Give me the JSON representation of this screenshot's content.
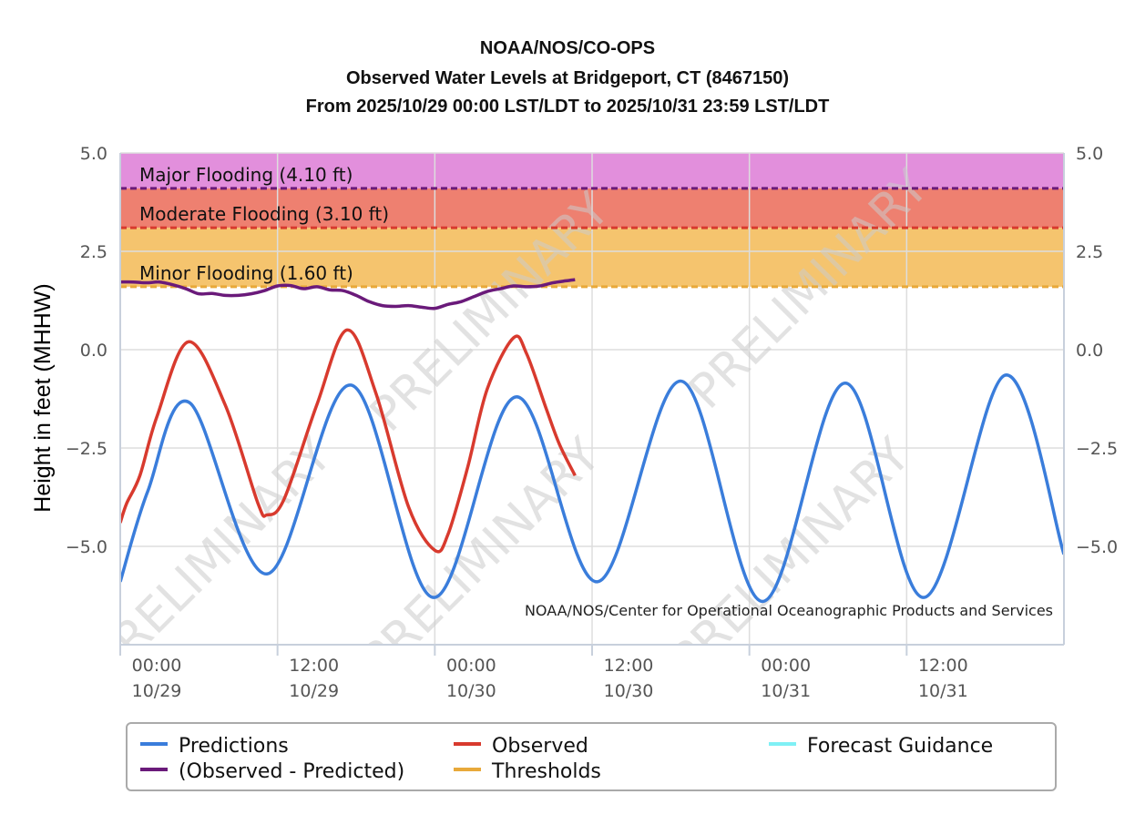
{
  "header": {
    "line1": "NOAA/NOS/CO-OPS",
    "line2": "Observed Water Levels at Bridgeport, CT (8467150)",
    "line3": "From 2025/10/29 00:00 LST/LDT to 2025/10/31 23:59 LST/LDT"
  },
  "credit": "NOAA/NOS/Center for Operational Oceanographic Products and Services",
  "watermark": "PRELIMINARY",
  "colors": {
    "predictions": "#3a7ddb",
    "observed": "#d83a2e",
    "residual": "#6a1a7a",
    "forecast": "#7ff0f5",
    "thresholds": "#e8a93a",
    "major_band": "#e28fdc",
    "moderate_band": "#ee8070",
    "minor_band": "#f5c46e"
  },
  "legend": [
    {
      "label": "Predictions",
      "color": "#3a7ddb"
    },
    {
      "label": "Observed",
      "color": "#d83a2e"
    },
    {
      "label": "Forecast Guidance",
      "color": "#7ff0f5"
    },
    {
      "label": "(Observed - Predicted)",
      "color": "#6a1a7a"
    },
    {
      "label": "Thresholds",
      "color": "#e8a93a"
    }
  ],
  "chart_data": {
    "type": "line",
    "title": "Observed Water Levels at Bridgeport, CT (8467150)",
    "ylabel": "Height in feet (MHHW)",
    "xlabel": "",
    "ylim": [
      -7.5,
      5.0
    ],
    "xlim_hours": [
      0,
      72
    ],
    "yticks": [
      "5.0",
      "2.5",
      "0.0",
      "−2.5",
      "−5.0"
    ],
    "ytick_values": [
      5.0,
      2.5,
      0.0,
      -2.5,
      -5.0
    ],
    "xticks": [
      {
        "hour": 0,
        "time": "00:00",
        "date": "10/29"
      },
      {
        "hour": 12,
        "time": "12:00",
        "date": "10/29"
      },
      {
        "hour": 24,
        "time": "00:00",
        "date": "10/30"
      },
      {
        "hour": 36,
        "time": "12:00",
        "date": "10/30"
      },
      {
        "hour": 48,
        "time": "00:00",
        "date": "10/31"
      },
      {
        "hour": 60,
        "time": "12:00",
        "date": "10/31"
      }
    ],
    "thresholds": [
      {
        "label": "Major Flooding (4.10 ft)",
        "value": 4.1,
        "band_top": 5.0
      },
      {
        "label": "Moderate Flooding (3.10 ft)",
        "value": 3.1,
        "band_top": 4.1
      },
      {
        "label": "Minor Flooding (1.60 ft)",
        "value": 1.6,
        "band_top": 3.1
      }
    ],
    "series": [
      {
        "name": "Predictions",
        "x": [
          0,
          2.1,
          5.3,
          11.2,
          17.6,
          23.9,
          30.2,
          36.4,
          42.8,
          49.0,
          55.3,
          61.3,
          67.5,
          72.0
        ],
        "values": [
          -5.9,
          -3.6,
          -1.35,
          -5.7,
          -0.9,
          -6.3,
          -1.2,
          -5.9,
          -0.8,
          -6.4,
          -0.85,
          -6.3,
          -0.65,
          -5.2
        ]
      },
      {
        "name": "Observed",
        "x": [
          0,
          0.5,
          1.5,
          2.8,
          5.2,
          8.0,
          10.5,
          11.2,
          12.5,
          15.0,
          17.3,
          19.5,
          22.0,
          24.0,
          25.0,
          26.5,
          28.0,
          30.0,
          31.0,
          32.5,
          33.5,
          34.7
        ],
        "values": [
          -4.4,
          -3.9,
          -3.2,
          -1.7,
          0.2,
          -1.4,
          -3.9,
          -4.2,
          -3.8,
          -1.4,
          0.5,
          -1.1,
          -4.0,
          -5.1,
          -4.7,
          -3.0,
          -1.0,
          0.3,
          -0.1,
          -1.5,
          -2.4,
          -3.2
        ]
      },
      {
        "name": "(Observed - Predicted)",
        "x": [
          0,
          1,
          2,
          3,
          4,
          5,
          6,
          7,
          8,
          9,
          10,
          11,
          12,
          13,
          14,
          15,
          16,
          17,
          18,
          19,
          20,
          21,
          22,
          23,
          24,
          25,
          26,
          27,
          28,
          29,
          30,
          31,
          32,
          33,
          34,
          34.7
        ],
        "values": [
          1.72,
          1.72,
          1.7,
          1.72,
          1.65,
          1.55,
          1.42,
          1.43,
          1.38,
          1.38,
          1.42,
          1.5,
          1.62,
          1.63,
          1.55,
          1.6,
          1.52,
          1.5,
          1.38,
          1.22,
          1.12,
          1.1,
          1.12,
          1.08,
          1.05,
          1.15,
          1.22,
          1.35,
          1.48,
          1.55,
          1.62,
          1.6,
          1.62,
          1.7,
          1.75,
          1.78
        ]
      }
    ]
  }
}
